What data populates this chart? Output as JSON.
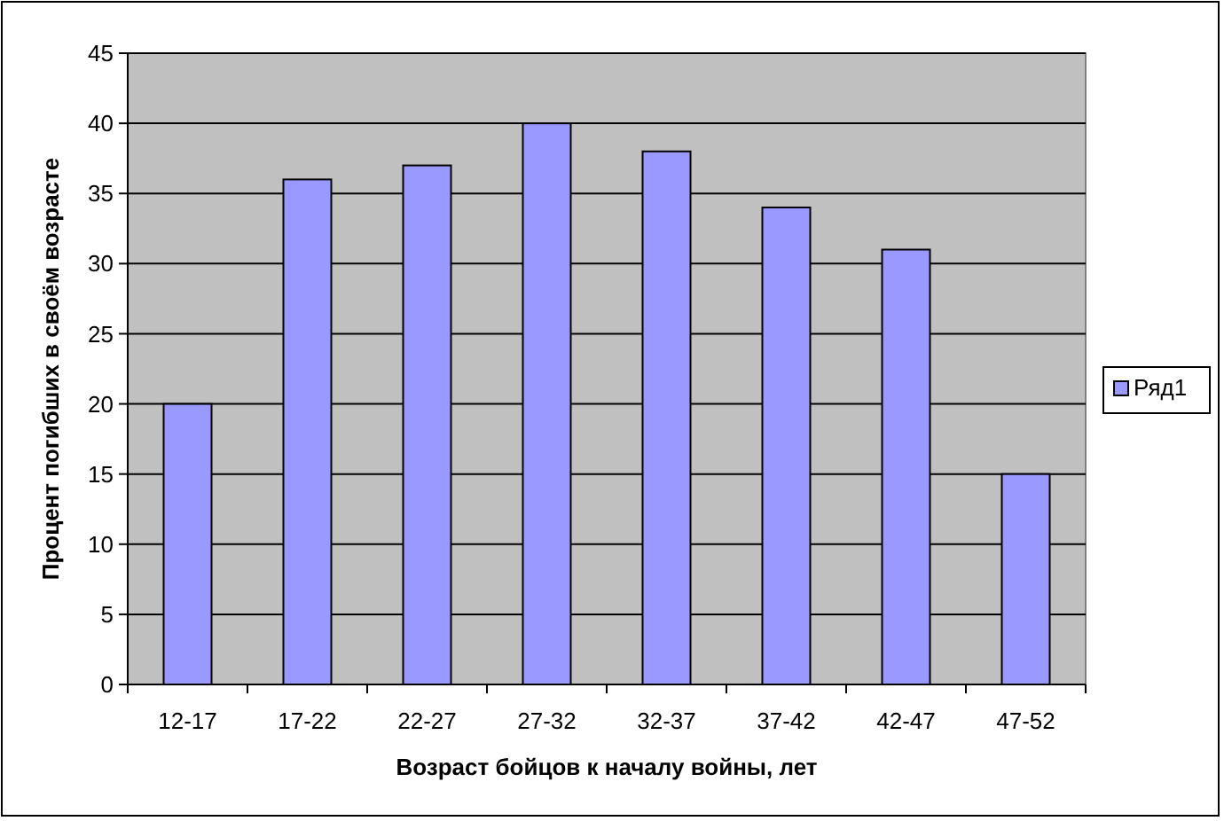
{
  "chart_data": {
    "type": "bar",
    "xlabel": "Возраст бойцов к началу войны, лет",
    "ylabel": "Процент погибших в своём возрасте",
    "categories": [
      "12-17",
      "17-22",
      "22-27",
      "27-32",
      "32-37",
      "37-42",
      "42-47",
      "47-52"
    ],
    "series": [
      {
        "name": "Ряд1",
        "color": "#9999ff",
        "values": [
          20,
          36,
          37,
          40,
          38,
          34,
          31,
          15
        ]
      }
    ],
    "ylim": [
      0,
      45
    ],
    "yticks": [
      0,
      5,
      10,
      15,
      20,
      25,
      30,
      35,
      40,
      45
    ],
    "grid": "y",
    "legend": "right"
  }
}
